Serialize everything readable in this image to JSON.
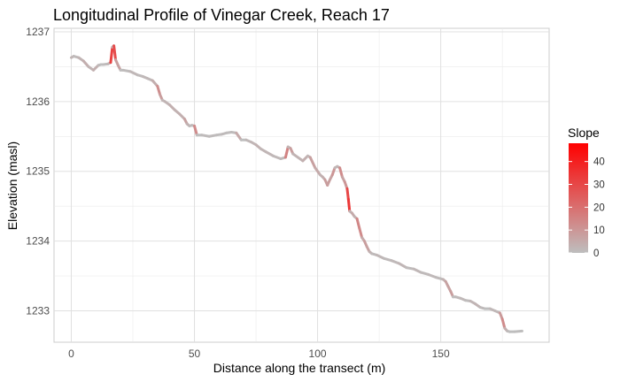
{
  "chart_data": {
    "type": "line",
    "title": "Longitudinal Profile of Vinegar Creek, Reach 17",
    "xlabel": "Distance along the transect (m)",
    "ylabel": "Elevation (masl)",
    "xlim": [
      -7,
      194
    ],
    "ylim": [
      1232.55,
      1237.05
    ],
    "x_ticks": [
      0,
      50,
      100,
      150
    ],
    "x_tick_labels": [
      "0",
      "50",
      "100",
      "150"
    ],
    "y_ticks": [
      1233,
      1234,
      1235,
      1236,
      1237
    ],
    "y_tick_labels": [
      "1233",
      "1234",
      "1235",
      "1236",
      "1237"
    ],
    "grid": true,
    "legend": {
      "title": "Slope",
      "position": "right",
      "type": "colorbar",
      "range": [
        0,
        48
      ],
      "ticks": [
        0,
        10,
        20,
        30,
        40
      ],
      "tick_labels": [
        "0",
        "10",
        "20",
        "30",
        "40"
      ],
      "low_color": "#bebebe",
      "high_color": "#ff0000"
    },
    "series": [
      {
        "x": [
          0,
          1,
          3,
          5,
          7,
          9,
          11,
          12,
          13,
          15,
          16,
          16.7,
          17.3,
          18,
          19,
          20,
          21,
          24,
          27,
          29,
          31,
          33,
          35,
          36,
          37,
          38,
          40,
          42,
          44,
          46,
          47,
          48,
          49,
          50,
          51,
          53,
          56,
          59,
          61,
          63,
          65,
          67,
          69,
          71,
          73,
          75,
          77,
          79,
          82,
          85,
          87,
          88,
          89,
          90,
          92,
          94,
          96,
          97,
          99,
          101,
          102,
          103,
          104,
          105,
          106,
          107,
          108,
          109,
          110,
          111,
          112,
          112.5,
          113,
          114,
          115,
          116,
          117,
          118,
          119,
          120,
          121,
          122,
          124,
          127,
          130,
          133,
          136,
          139,
          142,
          145,
          148,
          150,
          151,
          152,
          153,
          154,
          155,
          156,
          158,
          160,
          162,
          164,
          166,
          168,
          170,
          172,
          174,
          175,
          176,
          177,
          178,
          180,
          183
        ],
        "y": [
          1236.63,
          1236.65,
          1236.63,
          1236.58,
          1236.5,
          1236.45,
          1236.52,
          1236.53,
          1236.53,
          1236.54,
          1236.56,
          1236.78,
          1236.8,
          1236.6,
          1236.52,
          1236.45,
          1236.45,
          1236.43,
          1236.38,
          1236.36,
          1236.33,
          1236.3,
          1236.22,
          1236.1,
          1236.02,
          1236.0,
          1235.95,
          1235.88,
          1235.82,
          1235.75,
          1235.68,
          1235.65,
          1235.66,
          1235.65,
          1235.52,
          1235.52,
          1235.5,
          1235.52,
          1235.53,
          1235.55,
          1235.56,
          1235.55,
          1235.45,
          1235.45,
          1235.42,
          1235.38,
          1235.32,
          1235.28,
          1235.22,
          1235.18,
          1235.2,
          1235.35,
          1235.33,
          1235.25,
          1235.2,
          1235.15,
          1235.22,
          1235.2,
          1235.05,
          1234.95,
          1234.92,
          1234.88,
          1234.8,
          1234.88,
          1234.95,
          1235.05,
          1235.07,
          1235.05,
          1234.92,
          1234.85,
          1234.75,
          1234.6,
          1234.43,
          1234.4,
          1234.35,
          1234.32,
          1234.18,
          1234.05,
          1234.0,
          1233.92,
          1233.85,
          1233.82,
          1233.8,
          1233.75,
          1233.72,
          1233.68,
          1233.62,
          1233.6,
          1233.55,
          1233.52,
          1233.48,
          1233.46,
          1233.45,
          1233.42,
          1233.35,
          1233.28,
          1233.2,
          1233.2,
          1233.18,
          1233.15,
          1233.14,
          1233.1,
          1233.05,
          1233.03,
          1233.03,
          1233.0,
          1232.97,
          1232.88,
          1232.75,
          1232.71,
          1232.7,
          1232.7,
          1232.71
        ]
      }
    ],
    "background": "#ffffff",
    "grid_color": "#ebebeb",
    "panel_border_color": "#cccccc"
  }
}
